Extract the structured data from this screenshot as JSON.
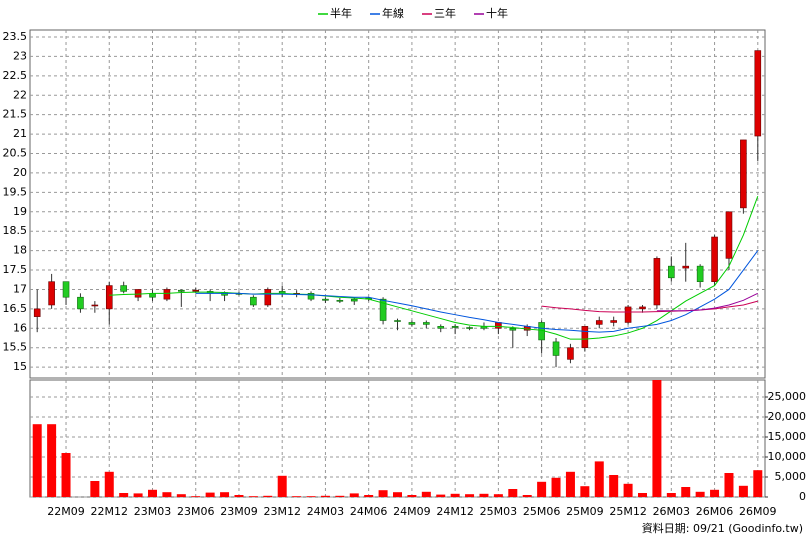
{
  "chart_data": [
    {
      "type": "candlestick",
      "up_color": "#dd0000",
      "down_color": "#22cc22",
      "open": [
        16.3,
        16.6,
        17.2,
        16.8,
        16.6,
        16.5,
        17.1,
        16.8,
        16.9,
        16.75,
        16.98,
        16.95,
        16.95,
        16.92,
        16.9,
        16.8,
        16.6,
        16.95,
        16.9,
        16.9,
        16.75,
        16.72,
        16.75,
        16.78,
        16.75,
        16.2,
        16.15,
        16.15,
        16.05,
        16.05,
        16.02,
        16.05,
        16.0,
        16.0,
        15.95,
        16.15,
        15.65,
        15.2,
        15.5,
        16.1,
        16.15,
        16.15,
        16.5,
        16.6,
        17.6,
        17.55,
        17.6,
        17.2,
        17.8,
        19.1,
        20.95
      ],
      "high": [
        17.0,
        17.4,
        17.2,
        16.9,
        16.7,
        17.2,
        17.2,
        17.0,
        17.0,
        17.05,
        17.0,
        17.05,
        17.0,
        16.95,
        16.95,
        16.85,
        17.05,
        17.1,
        16.98,
        16.95,
        16.8,
        16.78,
        16.8,
        16.8,
        16.8,
        16.25,
        16.2,
        16.2,
        16.1,
        16.1,
        16.05,
        16.15,
        16.15,
        16.05,
        16.1,
        16.2,
        15.75,
        15.6,
        16.05,
        16.3,
        16.3,
        16.6,
        16.6,
        17.85,
        17.85,
        18.2,
        17.65,
        18.4,
        19.0,
        20.85,
        23.15
      ],
      "low": [
        15.9,
        16.5,
        16.6,
        16.4,
        16.4,
        16.1,
        16.9,
        16.7,
        16.7,
        16.7,
        16.55,
        16.9,
        16.7,
        16.7,
        16.85,
        16.55,
        16.55,
        16.8,
        16.8,
        16.7,
        16.65,
        16.65,
        16.6,
        16.7,
        16.1,
        15.95,
        16.05,
        16.0,
        15.9,
        15.85,
        15.95,
        15.95,
        15.85,
        15.5,
        15.8,
        15.35,
        15.0,
        15.1,
        15.4,
        16.0,
        16.05,
        16.1,
        16.4,
        16.5,
        17.2,
        17.2,
        17.05,
        17.1,
        17.5,
        18.95,
        20.3
      ],
      "close": [
        16.5,
        17.2,
        16.8,
        16.5,
        16.6,
        17.1,
        16.95,
        17.0,
        16.8,
        17.0,
        16.95,
        16.98,
        16.9,
        16.85,
        16.88,
        16.6,
        17.0,
        16.9,
        16.9,
        16.75,
        16.72,
        16.7,
        16.7,
        16.75,
        16.2,
        16.18,
        16.1,
        16.1,
        16.0,
        16.02,
        16.0,
        16.0,
        16.15,
        15.95,
        16.05,
        15.7,
        15.3,
        15.5,
        16.05,
        16.2,
        16.2,
        16.55,
        16.55,
        17.8,
        17.3,
        17.6,
        17.2,
        18.35,
        19.0,
        20.85,
        23.15
      ],
      "series": [
        {
          "name": "半年",
          "color": "#00cc00",
          "values": [
            null,
            null,
            null,
            null,
            null,
            16.85,
            16.87,
            16.88,
            16.9,
            16.9,
            16.92,
            16.93,
            16.93,
            16.92,
            16.9,
            16.88,
            16.9,
            16.9,
            16.88,
            16.87,
            16.83,
            16.8,
            16.78,
            16.75,
            16.65,
            16.55,
            16.45,
            16.35,
            16.25,
            16.15,
            16.08,
            16.05,
            16.05,
            16.02,
            15.98,
            15.95,
            15.85,
            15.72,
            15.72,
            15.75,
            15.8,
            15.88,
            16.0,
            16.2,
            16.45,
            16.7,
            16.9,
            17.1,
            17.6,
            18.4,
            19.4
          ]
        },
        {
          "name": "年線",
          "color": "#0055dd",
          "values": [
            null,
            null,
            null,
            null,
            null,
            null,
            null,
            null,
            null,
            null,
            null,
            16.9,
            16.9,
            16.9,
            16.9,
            16.88,
            16.88,
            16.88,
            16.87,
            16.86,
            16.84,
            16.82,
            16.8,
            16.8,
            16.72,
            16.65,
            16.58,
            16.5,
            16.42,
            16.35,
            16.28,
            16.22,
            16.15,
            16.1,
            16.05,
            16.0,
            15.97,
            15.95,
            15.92,
            15.9,
            15.92,
            16.0,
            16.05,
            16.1,
            16.2,
            16.35,
            16.55,
            16.75,
            17.0,
            17.5,
            18.0
          ]
        },
        {
          "name": "三年",
          "color": "#cc0055",
          "values": [
            null,
            null,
            null,
            null,
            null,
            null,
            null,
            null,
            null,
            null,
            null,
            null,
            null,
            null,
            null,
            null,
            null,
            null,
            null,
            null,
            null,
            null,
            null,
            null,
            null,
            null,
            null,
            null,
            null,
            null,
            null,
            null,
            null,
            null,
            null,
            16.57,
            16.53,
            16.5,
            16.46,
            16.43,
            16.42,
            16.42,
            16.42,
            16.43,
            16.44,
            16.45,
            16.47,
            16.5,
            16.55,
            16.6,
            16.7
          ]
        },
        {
          "name": "十年",
          "color": "#990099",
          "values": [
            null,
            null,
            null,
            null,
            null,
            null,
            null,
            null,
            null,
            null,
            null,
            null,
            null,
            null,
            null,
            null,
            null,
            null,
            null,
            null,
            null,
            null,
            null,
            null,
            null,
            null,
            null,
            null,
            null,
            null,
            null,
            null,
            null,
            null,
            null,
            null,
            null,
            null,
            null,
            null,
            null,
            null,
            null,
            16.45,
            16.45,
            16.45,
            16.47,
            16.52,
            16.6,
            16.72,
            16.9
          ]
        }
      ],
      "ylim": [
        14.72,
        23.68
      ],
      "yticks": [
        15,
        15.5,
        16,
        16.5,
        17,
        17.5,
        18,
        18.5,
        19,
        19.5,
        20,
        20.5,
        21,
        21.5,
        22,
        22.5,
        23,
        23.5
      ],
      "grid": true
    },
    {
      "type": "bar",
      "color": "#ff0000",
      "categories": [
        null,
        null,
        "22M09",
        null,
        null,
        "22M12",
        null,
        null,
        "23M03",
        null,
        null,
        "23M06",
        null,
        null,
        "23M09",
        null,
        null,
        "23M12",
        null,
        null,
        "24M03",
        null,
        null,
        "24M06",
        null,
        null,
        "24M09",
        null,
        null,
        "24M12",
        null,
        null,
        "25M03",
        null,
        null,
        "25M06",
        null,
        null,
        "25M09",
        null,
        null,
        "25M12",
        null,
        null,
        "26M03",
        null,
        null,
        "26M06",
        null,
        null,
        "26M09"
      ],
      "values": [
        18200,
        18200,
        11000,
        0,
        4000,
        6300,
        1000,
        900,
        1800,
        1200,
        700,
        200,
        1100,
        1200,
        500,
        200,
        300,
        5300,
        200,
        200,
        300,
        300,
        900,
        500,
        1700,
        1200,
        500,
        1300,
        600,
        800,
        700,
        800,
        700,
        2000,
        500,
        3800,
        4800,
        6300,
        2700,
        8900,
        5500,
        3300,
        1000,
        29500,
        1000,
        2500,
        1300,
        1800,
        6000,
        2800,
        6700
      ],
      "ylim": [
        0,
        29250
      ],
      "yticks": [
        0,
        {
          "value": 5000,
          "label": "5,000"
        },
        {
          "value": 10000,
          "label": "10,000"
        },
        {
          "value": 15000,
          "label": "15,000"
        },
        {
          "value": 20000,
          "label": "20,000"
        },
        {
          "value": 25000,
          "label": "25,000"
        }
      ],
      "grid": true,
      "source": "資料日期: 09/21  (Goodinfo.tw)"
    }
  ]
}
